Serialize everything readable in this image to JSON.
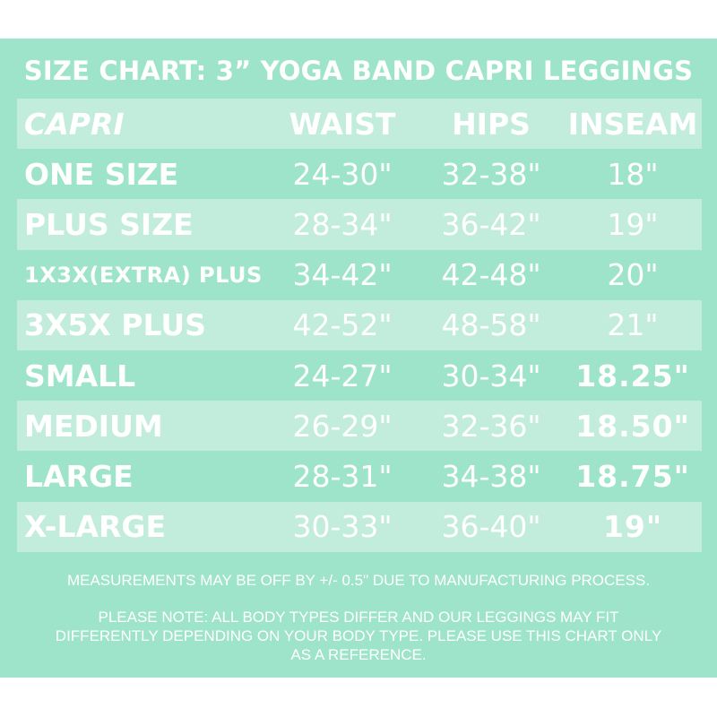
{
  "title": "SIZE CHART: 3” YOGA BAND CAPRI LEGGINGS",
  "table": {
    "headers": [
      "CAPRI",
      "WAIST",
      "HIPS",
      "INSEAM"
    ],
    "rows": [
      {
        "size": "ONE SIZE",
        "waist": "24-30\"",
        "hips": "32-38\"",
        "inseam": "18\""
      },
      {
        "size": "PLUS SIZE",
        "waist": "28-34\"",
        "hips": "36-42\"",
        "inseam": "19\""
      },
      {
        "size": "1X3X(EXTRA) PLUS",
        "waist": "34-42\"",
        "hips": "42-48\"",
        "inseam": "20\""
      },
      {
        "size": "3X5X PLUS",
        "waist": "42-52\"",
        "hips": "48-58\"",
        "inseam": "21\""
      },
      {
        "size": "SMALL",
        "waist": "24-27\"",
        "hips": "30-34\"",
        "inseam": "18.25\""
      },
      {
        "size": "MEDIUM",
        "waist": "26-29\"",
        "hips": "32-36\"",
        "inseam": "18.50\""
      },
      {
        "size": "LARGE",
        "waist": "28-31\"",
        "hips": "34-38\"",
        "inseam": "18.75\""
      },
      {
        "size": "X-LARGE",
        "waist": "30-33\"",
        "hips": "36-40\"",
        "inseam": "19\""
      }
    ]
  },
  "notes": {
    "measurement": "MEASUREMENTS MAY BE OFF BY +/- 0.5\" DUE TO MANUFACTURING PROCESS.",
    "fit": "PLEASE NOTE: ALL BODY TYPES DIFFER AND OUR LEGGINGS MAY FIT DIFFERENTLY DEPENDING ON YOUR BODY TYPE. PLEASE USE THIS CHART ONLY AS A REFERENCE."
  },
  "colors": {
    "background": "#9ee4ca",
    "stripe": "#c2eddc",
    "text": "#ffffff"
  }
}
